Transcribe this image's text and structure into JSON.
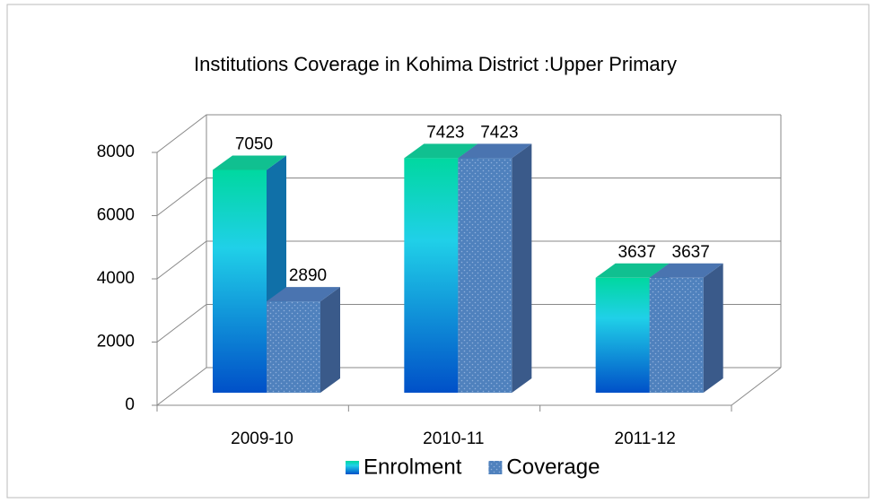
{
  "chart_data": {
    "type": "bar3d",
    "title": "Institutions Coverage in Kohima District :Upper Primary",
    "categories": [
      "2009-10",
      "2010-11",
      "2011-12"
    ],
    "series": [
      {
        "name": "Enrolment",
        "color": "#1aa0e0",
        "values": [
          7050,
          7423,
          3637
        ]
      },
      {
        "name": "Coverage",
        "color": "#4f81bd",
        "values": [
          2890,
          7423,
          3637
        ]
      }
    ],
    "ylim": [
      0,
      8000
    ],
    "yticks": [
      0,
      2000,
      4000,
      6000,
      8000
    ],
    "grid": true,
    "legend": "bottom"
  }
}
